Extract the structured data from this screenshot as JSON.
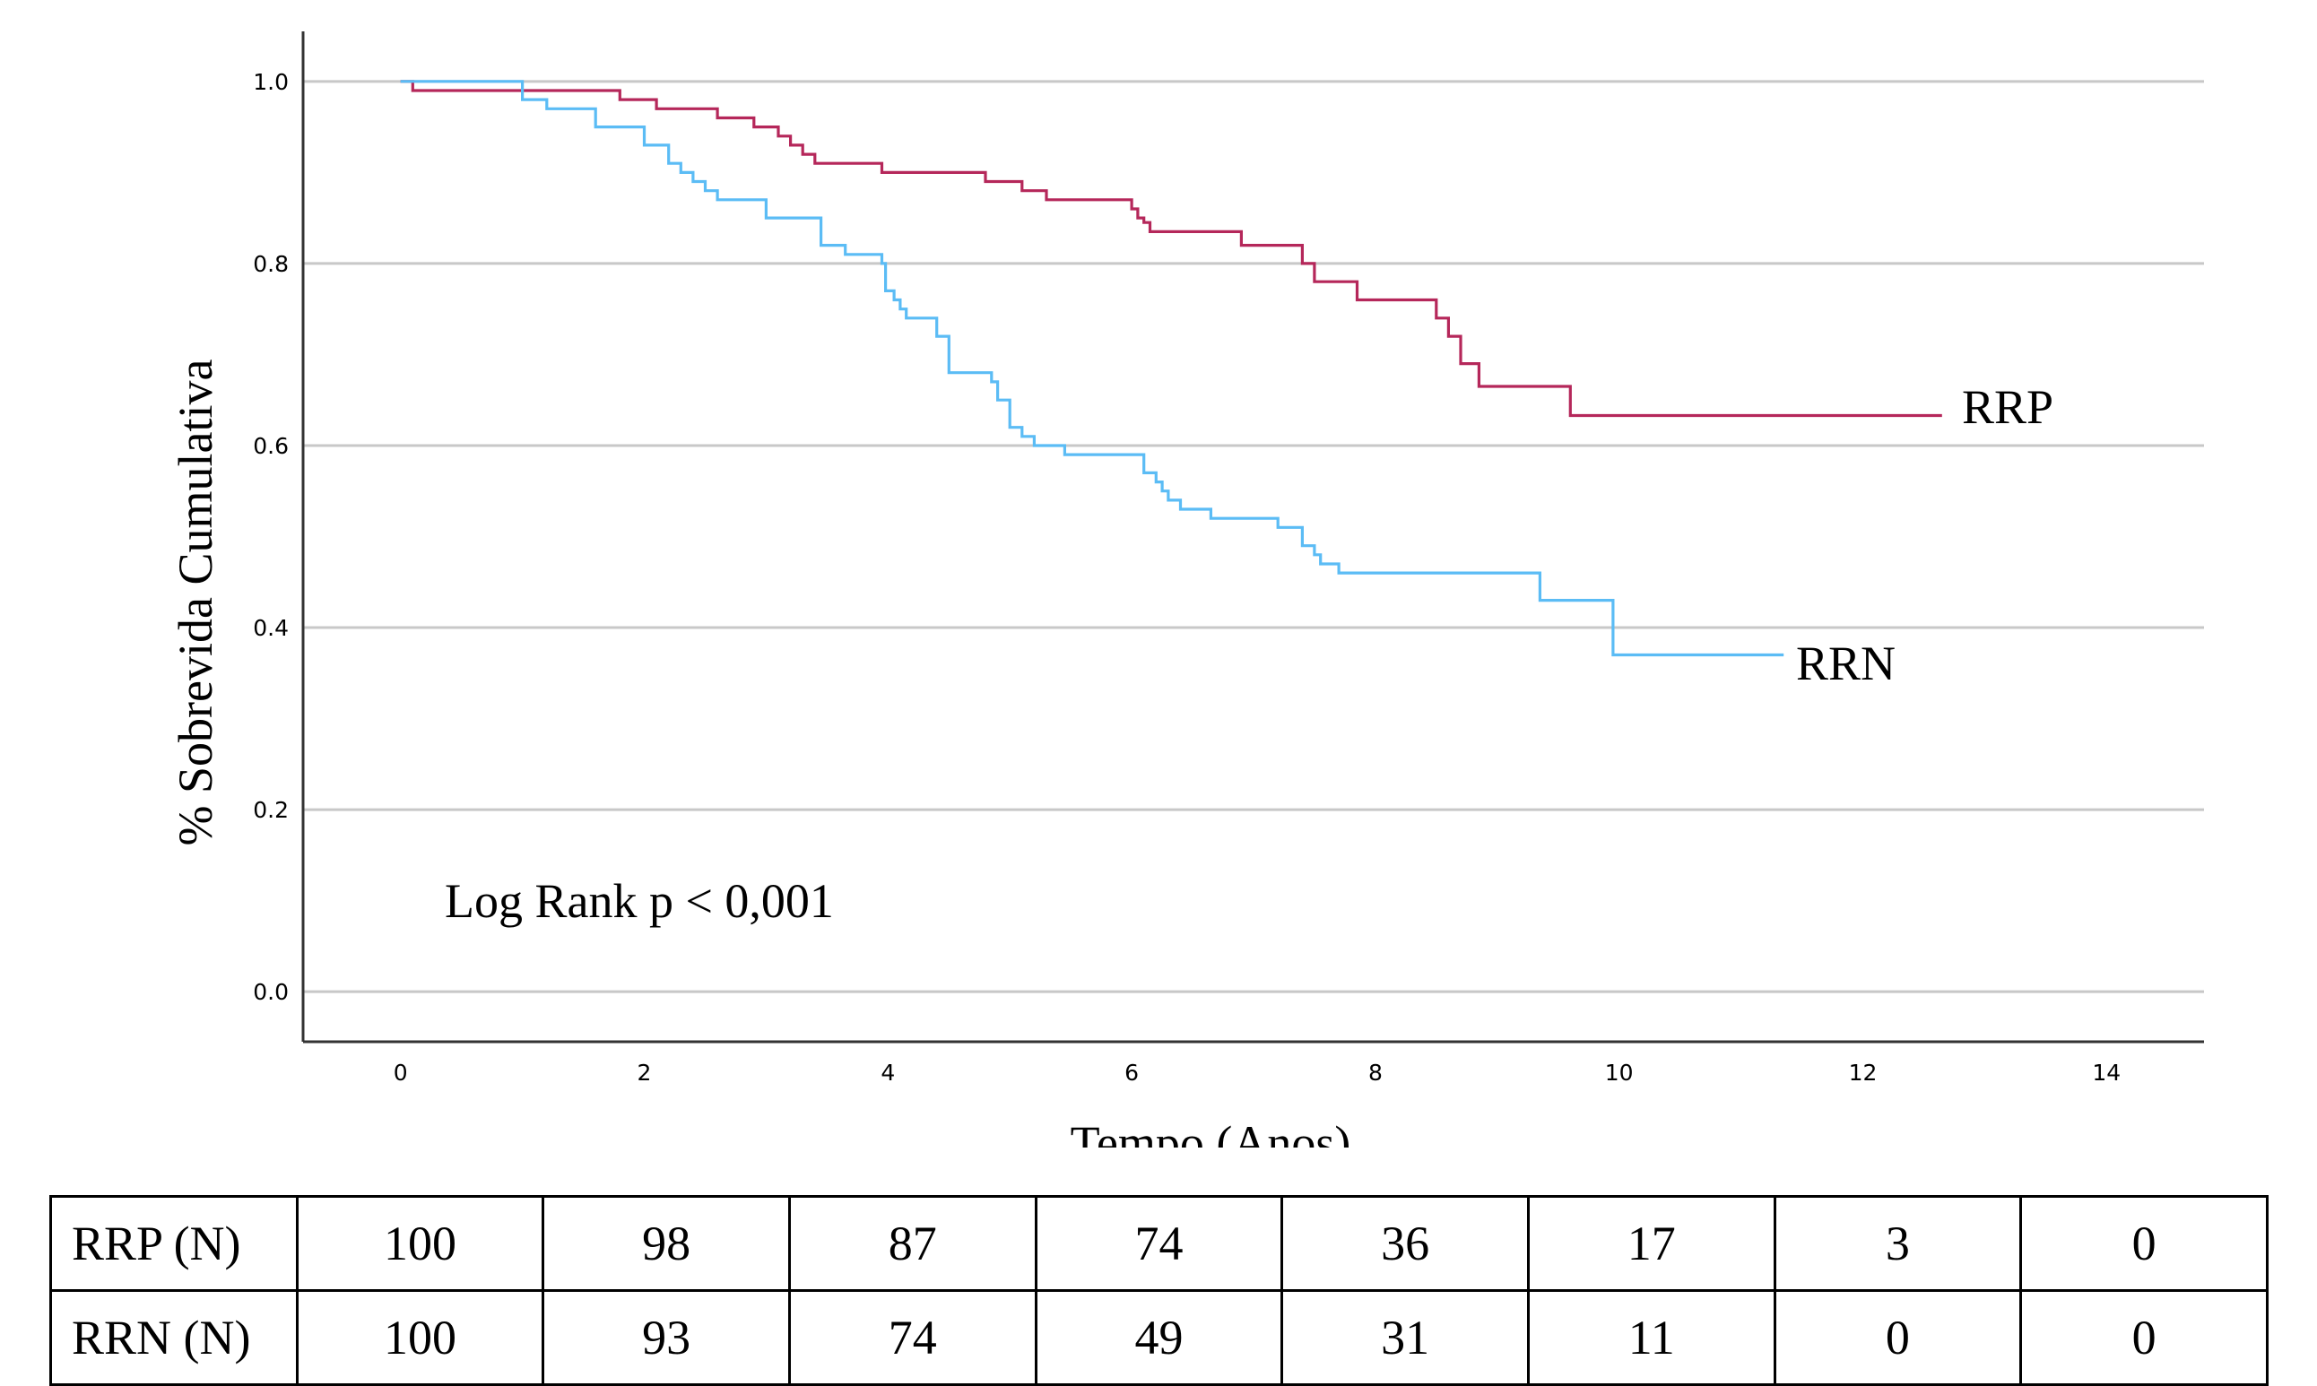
{
  "chart_data": {
    "type": "line",
    "step": true,
    "xlabel": "Tempo (Anos)",
    "ylabel": "% Sobrevida Cumulativa",
    "xlim": [
      -0.8,
      14.8
    ],
    "ylim": [
      -0.055,
      1.055
    ],
    "xticks": [
      "0",
      "2",
      "4",
      "6",
      "8",
      "10",
      "12",
      "14"
    ],
    "yticks": [
      "0.0",
      "0.2",
      "0.4",
      "0.6",
      "0.8",
      "1.0"
    ],
    "grid": "horizontal",
    "annotation": "Log Rank p < 0,001",
    "series": [
      {
        "name": "RRP",
        "color": "#b5275a",
        "x": [
          0,
          0.1,
          1.8,
          2.1,
          2.6,
          2.9,
          3.1,
          3.2,
          3.3,
          3.4,
          3.95,
          4.8,
          5.1,
          5.3,
          6.0,
          6.05,
          6.1,
          6.15,
          6.9,
          7.4,
          7.5,
          7.7,
          7.85,
          8.5,
          8.6,
          8.7,
          8.85,
          9.05,
          9.6,
          12.65
        ],
        "y": [
          1.0,
          0.99,
          0.98,
          0.97,
          0.96,
          0.95,
          0.94,
          0.93,
          0.92,
          0.91,
          0.9,
          0.89,
          0.88,
          0.87,
          0.86,
          0.85,
          0.845,
          0.835,
          0.82,
          0.8,
          0.78,
          0.78,
          0.76,
          0.74,
          0.72,
          0.69,
          0.665,
          0.665,
          0.633,
          0.633
        ]
      },
      {
        "name": "RRN",
        "color": "#5bbcf5",
        "x": [
          0,
          1.0,
          1.2,
          1.5,
          1.6,
          1.75,
          2.0,
          2.15,
          2.2,
          2.3,
          2.4,
          2.5,
          2.6,
          2.7,
          3.0,
          3.2,
          3.45,
          3.5,
          3.65,
          3.95,
          3.98,
          4.05,
          4.1,
          4.15,
          4.3,
          4.4,
          4.5,
          4.8,
          4.85,
          4.9,
          5.0,
          5.1,
          5.2,
          5.3,
          5.35,
          5.45,
          5.75,
          6.1,
          6.2,
          6.25,
          6.3,
          6.4,
          6.45,
          6.65,
          6.9,
          7.2,
          7.3,
          7.4,
          7.5,
          7.55,
          7.7,
          7.9,
          9.35,
          9.85,
          9.95,
          11.35
        ],
        "y": [
          1.0,
          0.98,
          0.97,
          0.97,
          0.95,
          0.95,
          0.93,
          0.93,
          0.91,
          0.9,
          0.89,
          0.88,
          0.87,
          0.87,
          0.85,
          0.85,
          0.82,
          0.82,
          0.81,
          0.8,
          0.77,
          0.76,
          0.75,
          0.74,
          0.74,
          0.72,
          0.68,
          0.68,
          0.67,
          0.65,
          0.62,
          0.61,
          0.6,
          0.6,
          0.6,
          0.59,
          0.59,
          0.57,
          0.56,
          0.55,
          0.54,
          0.53,
          0.53,
          0.52,
          0.52,
          0.51,
          0.51,
          0.49,
          0.48,
          0.47,
          0.46,
          0.46,
          0.43,
          0.43,
          0.37,
          0.37
        ]
      }
    ]
  },
  "risk_table": {
    "rows": [
      {
        "label": "RRP (N)",
        "values": [
          "100",
          "98",
          "87",
          "74",
          "36",
          "17",
          "3",
          "0"
        ]
      },
      {
        "label": "RRN (N)",
        "values": [
          "100",
          "93",
          "74",
          "49",
          "31",
          "11",
          "0",
          "0"
        ]
      }
    ]
  }
}
